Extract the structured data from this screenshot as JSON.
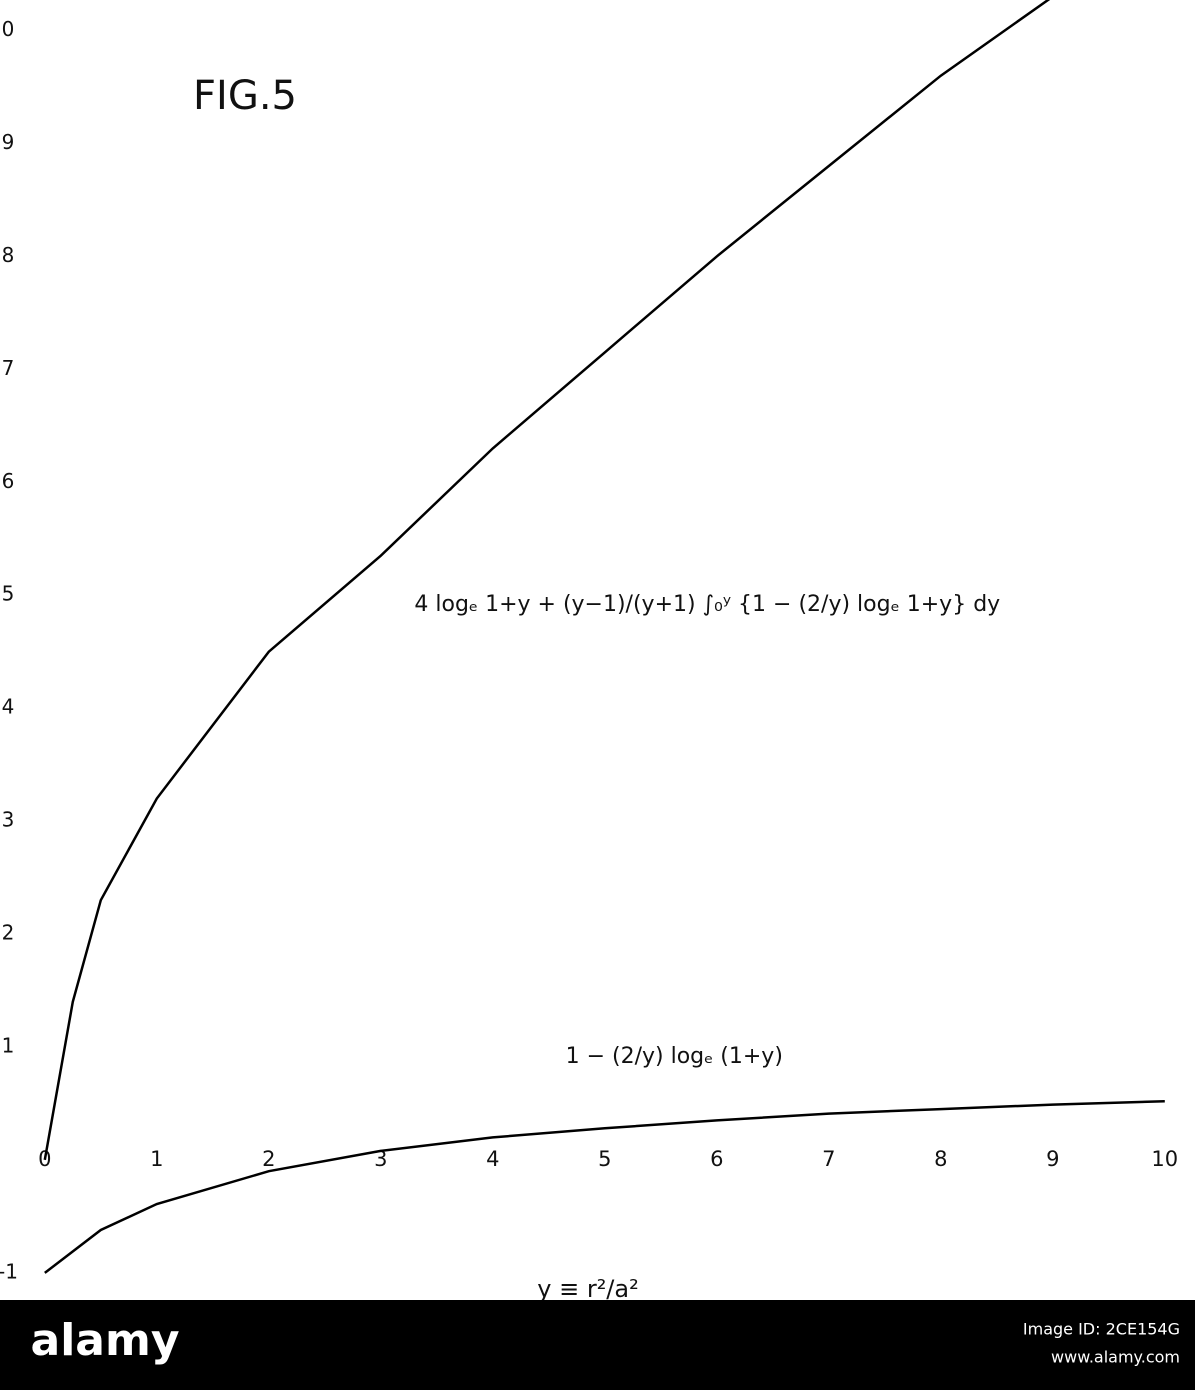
{
  "chart_data": {
    "type": "line",
    "title": "FIG.5",
    "xlabel": "y ≡ r²/a²",
    "xlim": [
      -0.4,
      10.27
    ],
    "ylim": [
      -1.24,
      10.27
    ],
    "xticks": [
      0,
      1,
      2,
      3,
      4,
      5,
      6,
      7,
      8,
      9,
      10
    ],
    "yticks": [
      -1,
      1,
      2,
      3,
      4,
      5,
      6,
      7,
      8,
      9,
      {
        "value": 10,
        "label": "0"
      }
    ],
    "grid": false,
    "series": [
      {
        "color": "#000000",
        "x": [
          0,
          0.25,
          0.5,
          1,
          2,
          3,
          4,
          5,
          6,
          7,
          8,
          9
        ],
        "values": [
          0,
          1.4,
          2.3,
          3.2,
          4.5,
          5.35,
          6.3,
          7.15,
          8.0,
          8.8,
          9.6,
          10.3
        ]
      },
      {
        "color": "#000000",
        "x": [
          0,
          0.5,
          1,
          2,
          3,
          4,
          5,
          6,
          7,
          8,
          9,
          10
        ],
        "values": [
          -1,
          -0.62,
          -0.39,
          -0.1,
          0.08,
          0.2,
          0.28,
          0.35,
          0.41,
          0.45,
          0.49,
          0.52
        ]
      }
    ],
    "annotations": [
      {
        "text": "4 logₑ 1+y + (y−1)/(y+1) ∫₀ʸ {1 − (2/y) logₑ 1+y} dy",
        "x": 3.3,
        "y": 5
      },
      {
        "text": "1 − (2/y) logₑ (1+y)",
        "x": 4.65,
        "y": 1
      }
    ]
  },
  "watermark": {
    "brand": "alamy",
    "image_id": "Image ID: 2CE154G",
    "url": "www.alamy.com"
  }
}
